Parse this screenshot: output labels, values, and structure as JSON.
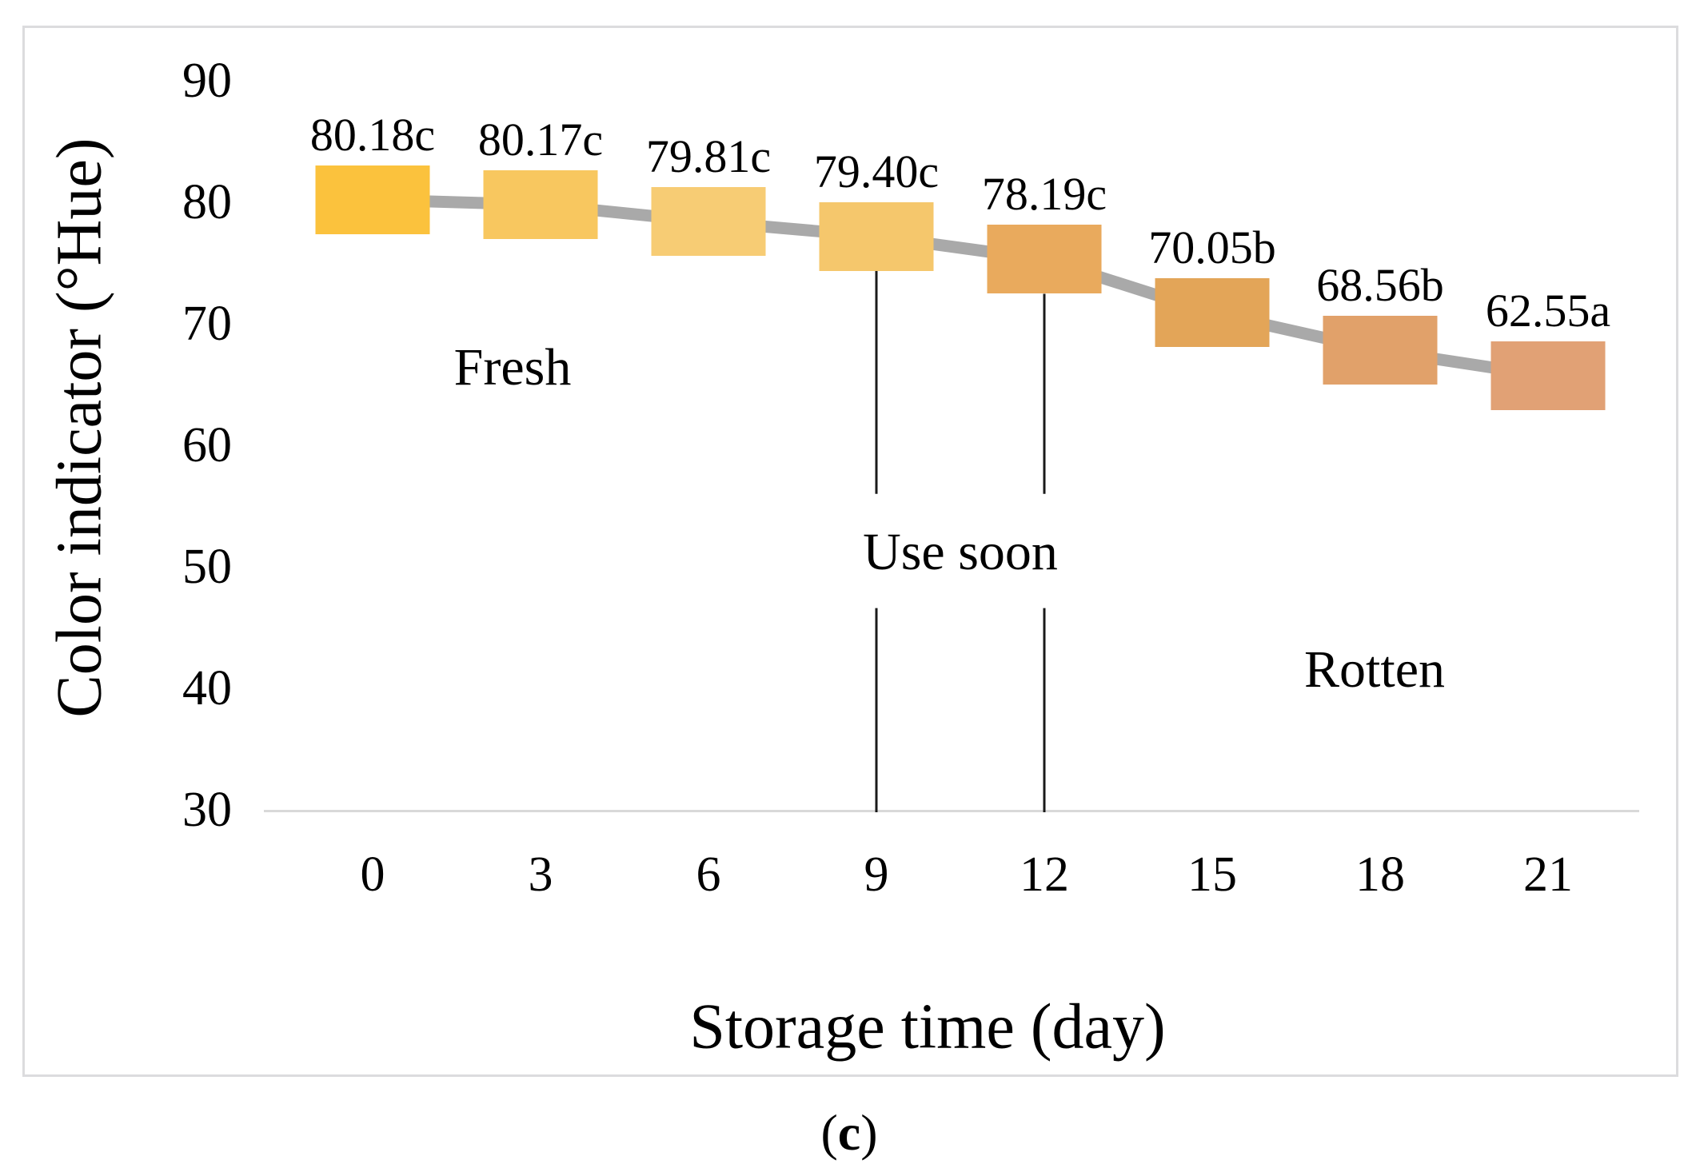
{
  "figure": {
    "caption": {
      "open": "(",
      "letter": "c",
      "close": ")"
    }
  },
  "chart_data": {
    "type": "line",
    "title": "",
    "xlabel": "Storage time (day)",
    "ylabel": "Color indicator (°Hue)",
    "x": [
      0,
      3,
      6,
      9,
      12,
      15,
      18,
      21
    ],
    "series": [
      {
        "name": "Color indicator (°Hue)",
        "values": [
          80.18,
          80.17,
          79.81,
          79.4,
          78.19,
          70.05,
          68.56,
          62.55
        ]
      }
    ],
    "point_labels": [
      "80.18c",
      "80.17c",
      "79.81c",
      "79.40c",
      "78.19c",
      "70.05b",
      "68.56b",
      "62.55a"
    ],
    "marker_colors": [
      "#FBC23D",
      "#F8C75F",
      "#F7CC74",
      "#F5C76C",
      "#E9AA5D",
      "#E3A558",
      "#E1A16A",
      "#E1A175"
    ],
    "line_color": "#A9A9A9",
    "axis_color": "#D9D9D9",
    "guide_line_color": "#1A1A1A",
    "ylim": [
      30,
      90
    ],
    "y_ticks": [
      90,
      80,
      70,
      60,
      50,
      40,
      30
    ],
    "grid": false,
    "legend": false,
    "annotations": [
      {
        "label": "Fresh",
        "x_day": 2.5,
        "y_hue": 66.4
      },
      {
        "label": "Use soon",
        "x_day": 10.5,
        "y_hue": 51.2
      },
      {
        "label": "Rotten",
        "x_day": 17.9,
        "y_hue": 41.5
      }
    ],
    "guide_lines": {
      "days": [
        9,
        12
      ],
      "gap_top_hue": 56.0,
      "gap_bottom_hue": 46.6
    },
    "marker_hue_positions": [
      80.2,
      79.8,
      78.4,
      77.2,
      75.3,
      70.9,
      67.8,
      65.7
    ]
  }
}
